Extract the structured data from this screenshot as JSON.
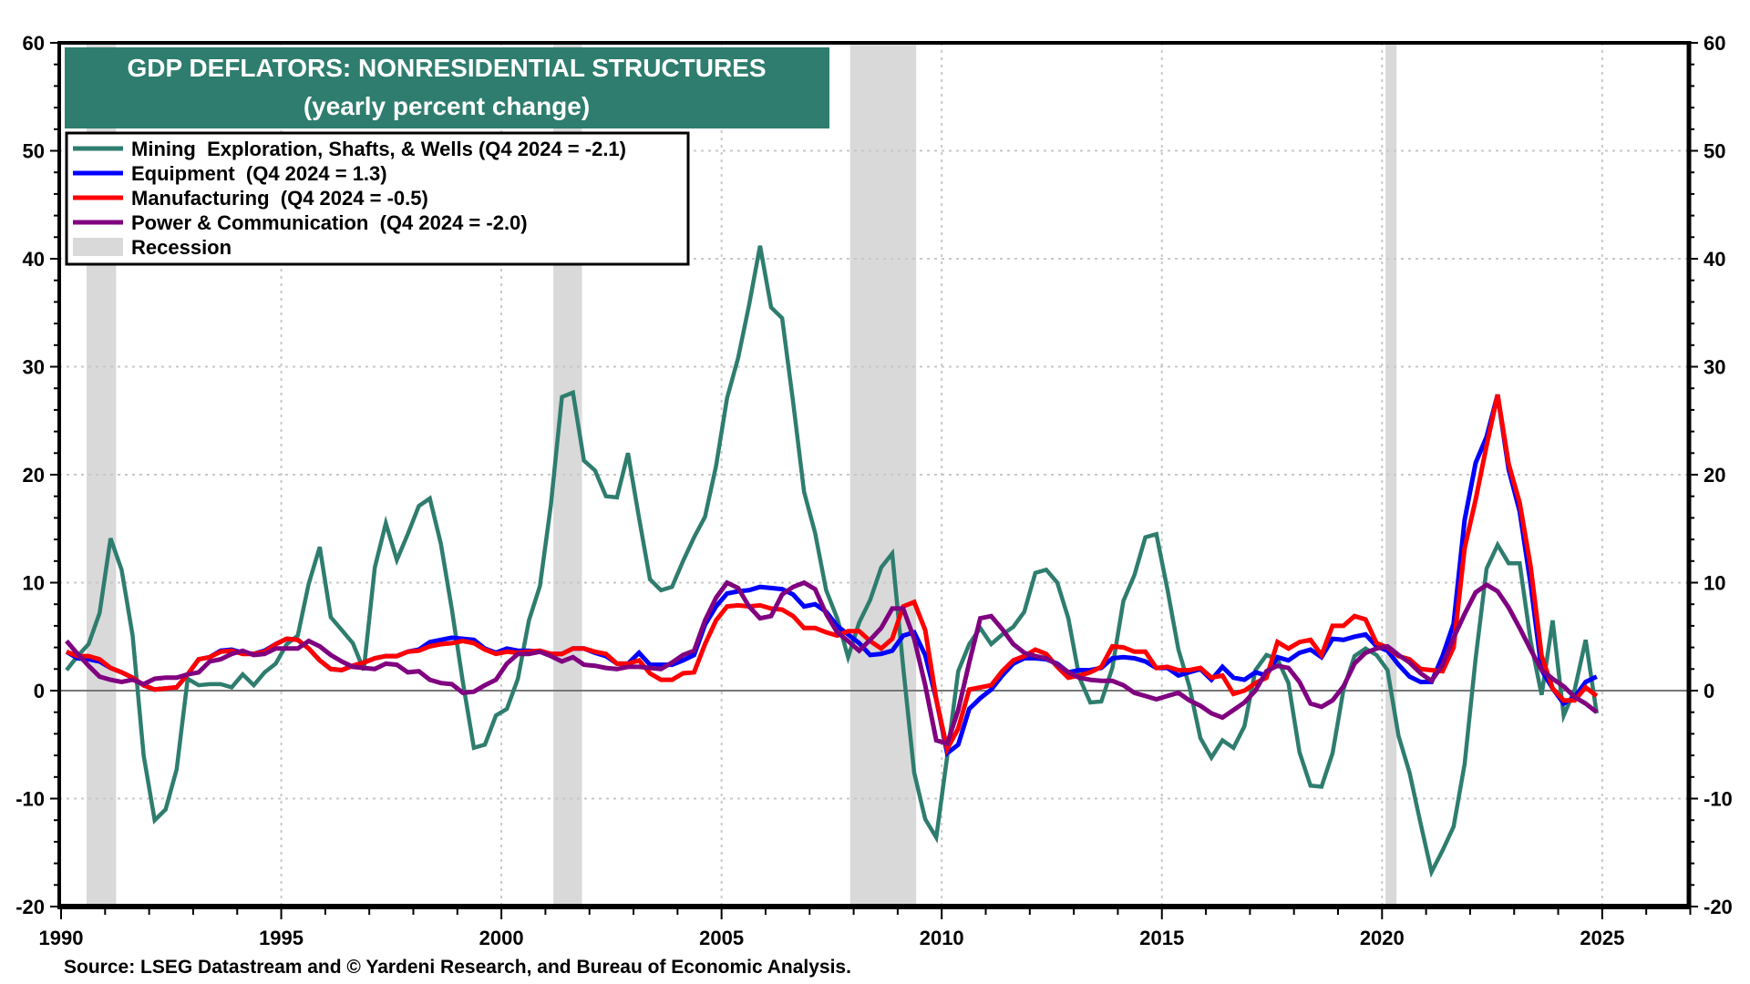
{
  "chart_data": {
    "type": "line",
    "title": "GDP DEFLATORS: NONRESIDENTIAL STRUCTURES",
    "subtitle": "(yearly percent change)",
    "xlabel": "",
    "ylabel": "",
    "source": "Source: LSEG Datastream and © Yardeni Research, and Bureau of Economic Analysis.",
    "frequency": "quarterly",
    "x_start": "1990 Q1",
    "x_end": "2024 Q4",
    "xlim": [
      1990,
      2027
    ],
    "ylim": [
      -20,
      60
    ],
    "x_ticks": [
      "1990",
      "1995",
      "2000",
      "2005",
      "2010",
      "2015",
      "2020",
      "2025"
    ],
    "y_ticks": [
      "-20",
      "-10",
      "0",
      "10",
      "20",
      "30",
      "40",
      "50",
      "60"
    ],
    "y_axes": "left and right (mirrored)",
    "grid": true,
    "legend_position": "top-left",
    "colors": {
      "mining": "#2e7d6e",
      "equipment": "#0000ff",
      "manufacturing": "#ff0000",
      "power": "#800080",
      "recession": "#d9d9d9",
      "title_bg": "#2e7d6e"
    },
    "recessions": [
      {
        "start": 1990.58,
        "end": 1991.25
      },
      {
        "start": 2001.18,
        "end": 2001.83
      },
      {
        "start": 2007.92,
        "end": 2009.42
      },
      {
        "start": 2020.08,
        "end": 2020.33
      }
    ],
    "legend": [
      {
        "key": "mining",
        "label": "Mining  Exploration, Shafts, & Wells (Q4 2024 = -2.1)"
      },
      {
        "key": "equipment",
        "label": "Equipment  (Q4 2024 = 1.3)"
      },
      {
        "key": "manufacturing",
        "label": "Manufacturing  (Q4 2024 = -0.5)"
      },
      {
        "key": "power",
        "label": "Power & Communication  (Q4 2024 = -2.0)"
      },
      {
        "key": "recession",
        "label": "Recession"
      }
    ],
    "series": [
      {
        "key": "mining",
        "name": "Mining Exploration, Shafts, & Wells",
        "last_value": -2.1,
        "values": [
          1.9,
          3.2,
          4.3,
          7.2,
          14.1,
          11.2,
          5.1,
          -6.0,
          -12.0,
          -11.0,
          -7.3,
          1.1,
          0.5,
          0.6,
          0.6,
          0.3,
          1.5,
          0.5,
          1.7,
          2.5,
          4.3,
          5.1,
          9.9,
          13.3,
          6.8,
          5.6,
          4.4,
          1.9,
          11.4,
          15.5,
          12.1,
          14.5,
          17.1,
          17.8,
          13.6,
          7.5,
          0.8,
          -5.3,
          -5.0,
          -2.3,
          -1.7,
          1.1,
          6.5,
          9.7,
          17.2,
          27.2,
          27.6,
          21.3,
          20.4,
          18.0,
          17.9,
          22.0,
          16.0,
          10.3,
          9.3,
          9.6,
          12.0,
          14.2,
          16.1,
          20.8,
          27.1,
          30.8,
          35.7,
          41.2,
          35.5,
          34.5,
          26.7,
          18.4,
          14.6,
          9.3,
          6.7,
          3.1,
          6.3,
          8.4,
          11.4,
          12.7,
          2.2,
          -7.6,
          -11.9,
          -13.6,
          -6.1,
          1.8,
          4.3,
          5.8,
          4.3,
          5.2,
          5.9,
          7.3,
          10.9,
          11.2,
          10.0,
          6.7,
          1.2,
          -1.1,
          -1.0,
          2.1,
          8.3,
          10.7,
          14.2,
          14.5,
          9.4,
          3.8,
          0.4,
          -4.4,
          -6.2,
          -4.6,
          -5.3,
          -3.3,
          1.9,
          3.3,
          2.9,
          0.7,
          -5.7,
          -8.8,
          -8.9,
          -5.8,
          0.1,
          3.2,
          3.9,
          3.3,
          1.9,
          -4.2,
          -7.6,
          -12.3,
          -16.8,
          -14.8,
          -12.6,
          -6.8,
          3.0,
          11.3,
          13.5,
          11.8,
          11.8,
          4.6,
          -0.4,
          6.5,
          -2.3,
          0.1,
          4.7,
          -2.1
        ]
      },
      {
        "key": "equipment",
        "name": "Equipment",
        "last_value": 1.3,
        "values": [
          3.6,
          3.0,
          2.9,
          2.7,
          2.1,
          1.7,
          1.2,
          0.5,
          0.1,
          0.2,
          0.3,
          1.5,
          2.9,
          3.1,
          3.7,
          3.8,
          3.5,
          3.4,
          3.7,
          4.3,
          4.8,
          4.7,
          3.9,
          2.8,
          2.0,
          1.9,
          2.3,
          2.6,
          3.0,
          3.2,
          3.2,
          3.6,
          3.8,
          4.5,
          4.7,
          4.9,
          4.8,
          4.7,
          3.9,
          3.5,
          3.9,
          3.7,
          3.7,
          3.6,
          3.4,
          3.4,
          3.9,
          3.9,
          3.5,
          3.2,
          2.5,
          2.5,
          3.5,
          2.4,
          2.4,
          2.4,
          2.8,
          3.3,
          6.1,
          7.8,
          9.0,
          9.2,
          9.3,
          9.6,
          9.5,
          9.4,
          8.9,
          7.8,
          8.0,
          7.3,
          6.0,
          5.2,
          4.4,
          3.3,
          3.4,
          3.7,
          5.1,
          5.4,
          3.3,
          -0.8,
          -5.8,
          -5.0,
          -1.7,
          -0.7,
          0.1,
          1.4,
          2.5,
          3.0,
          3.0,
          2.9,
          2.5,
          1.7,
          1.9,
          1.9,
          2.1,
          3.0,
          3.1,
          3.0,
          2.7,
          2.1,
          2.1,
          1.4,
          1.7,
          2.0,
          1.0,
          2.2,
          1.2,
          1.0,
          1.7,
          1.4,
          3.1,
          2.8,
          3.5,
          3.8,
          3.1,
          4.8,
          4.7,
          5.0,
          5.2,
          4.1,
          3.7,
          2.4,
          1.3,
          0.8,
          0.8,
          3.2,
          6.2,
          15.8,
          21.1,
          23.5,
          27.4,
          20.5,
          16.6,
          9.9,
          1.9,
          0.2,
          -1.2,
          -0.6,
          0.8,
          1.3
        ]
      },
      {
        "key": "manufacturing",
        "name": "Manufacturing",
        "last_value": -0.5,
        "values": [
          3.6,
          3.2,
          3.2,
          2.9,
          2.1,
          1.7,
          1.2,
          0.5,
          0.1,
          0.2,
          0.3,
          1.5,
          2.9,
          3.1,
          3.6,
          3.7,
          3.4,
          3.4,
          3.6,
          4.3,
          4.8,
          4.7,
          3.9,
          2.8,
          2.0,
          1.9,
          2.3,
          2.6,
          3.0,
          3.2,
          3.2,
          3.6,
          3.7,
          4.1,
          4.3,
          4.4,
          4.6,
          4.4,
          3.8,
          3.4,
          3.6,
          3.5,
          3.6,
          3.7,
          3.4,
          3.4,
          3.9,
          3.9,
          3.6,
          3.4,
          2.5,
          2.5,
          2.8,
          1.6,
          1.0,
          1.0,
          1.6,
          1.7,
          4.3,
          6.5,
          7.8,
          7.9,
          7.8,
          7.9,
          7.6,
          7.5,
          6.9,
          5.8,
          5.8,
          5.4,
          5.1,
          5.5,
          5.5,
          4.6,
          3.9,
          4.8,
          7.8,
          8.2,
          5.6,
          -0.8,
          -5.4,
          -3.5,
          0.1,
          0.3,
          0.5,
          1.8,
          2.8,
          3.2,
          3.8,
          3.4,
          2.2,
          1.2,
          1.4,
          1.7,
          2.2,
          4.1,
          4.0,
          3.6,
          3.6,
          2.1,
          2.2,
          1.9,
          1.9,
          2.1,
          1.2,
          1.4,
          -0.3,
          0.0,
          0.7,
          1.2,
          4.5,
          3.9,
          4.5,
          4.7,
          3.3,
          6.0,
          6.0,
          6.9,
          6.6,
          4.4,
          4.0,
          3.2,
          2.9,
          2.0,
          1.9,
          1.8,
          4.0,
          13.2,
          17.7,
          22.7,
          27.4,
          21.0,
          17.4,
          11.5,
          3.2,
          0.2,
          -0.9,
          -0.9,
          0.3,
          -0.5
        ]
      },
      {
        "key": "power",
        "name": "Power & Communication",
        "last_value": -2.0,
        "values": [
          4.6,
          3.4,
          2.3,
          1.3,
          1.0,
          0.8,
          1.0,
          0.6,
          1.1,
          1.2,
          1.2,
          1.5,
          1.7,
          2.7,
          2.9,
          3.4,
          3.7,
          3.3,
          3.4,
          3.9,
          3.9,
          3.9,
          4.6,
          4.1,
          3.3,
          2.7,
          2.2,
          2.1,
          2.0,
          2.5,
          2.4,
          1.7,
          1.8,
          1.0,
          0.7,
          0.6,
          -0.2,
          -0.1,
          0.5,
          1.0,
          2.5,
          3.4,
          3.4,
          3.6,
          3.2,
          2.7,
          3.1,
          2.4,
          2.3,
          2.1,
          2.0,
          2.2,
          2.2,
          2.1,
          2.0,
          2.6,
          3.3,
          3.7,
          6.5,
          8.6,
          10.0,
          9.5,
          7.8,
          6.7,
          6.9,
          8.9,
          9.6,
          10.0,
          9.4,
          7.1,
          5.4,
          4.6,
          3.7,
          4.7,
          5.8,
          7.6,
          7.6,
          4.8,
          0.5,
          -4.6,
          -4.9,
          -1.8,
          2.6,
          6.7,
          6.9,
          5.7,
          4.3,
          3.5,
          3.2,
          3.0,
          2.4,
          1.7,
          1.2,
          1.0,
          0.9,
          0.9,
          0.5,
          -0.2,
          -0.5,
          -0.8,
          -0.5,
          -0.2,
          -0.9,
          -1.4,
          -2.1,
          -2.5,
          -1.8,
          -1.1,
          0.0,
          1.8,
          2.3,
          2.1,
          0.8,
          -1.2,
          -1.5,
          -0.9,
          0.4,
          2.5,
          3.5,
          3.9,
          4.1,
          3.3,
          2.6,
          1.6,
          0.9,
          2.4,
          4.9,
          7.1,
          9.1,
          9.8,
          9.2,
          7.7,
          5.8,
          3.8,
          1.9,
          1.1,
          0.4,
          -0.6,
          -1.2,
          -2.0
        ]
      }
    ]
  }
}
